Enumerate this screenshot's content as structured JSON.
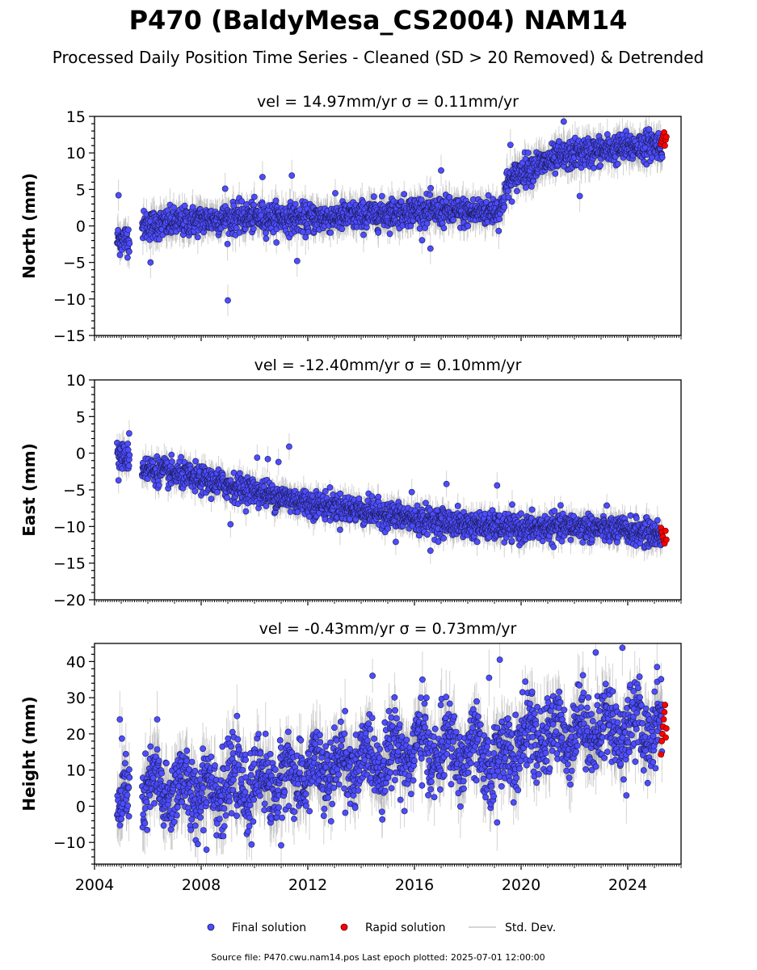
{
  "figure": {
    "title": "P470 (BaldyMesa_CS2004) NAM14",
    "subtitle": "Processed Daily Position Time Series - Cleaned (SD > 20 Removed) & Detrended",
    "footer": "Source file: P470.cwu.nam14.pos  Last epoch plotted: 2025-07-01 12:00:00"
  },
  "legend": {
    "final": "Final solution",
    "rapid": "Rapid solution",
    "std": "Std. Dev."
  },
  "colors": {
    "final_fill": "#4d4dff",
    "final_edge": "#1a1a55",
    "rapid_fill": "#ff0000",
    "rapid_edge": "#550000",
    "std_line": "#a8a8a8"
  },
  "chart_data": [
    {
      "type": "scatter",
      "panel_title": "vel = 14.97mm/yr   σ = 0.11mm/yr",
      "ylabel": "North (mm)",
      "xlim": [
        2004.0,
        2026.0
      ],
      "ylim": [
        -15,
        15
      ],
      "yticks": [
        -15,
        -10,
        -5,
        0,
        5,
        10,
        15
      ],
      "ytick_labels": [
        "−15",
        "−10",
        "−5",
        "0",
        "5",
        "10",
        "15"
      ],
      "xticks": [
        2004,
        2008,
        2012,
        2016,
        2020,
        2024
      ],
      "series": [
        {
          "role": "final",
          "trend_x": [
            2004.85,
            2005.5,
            2005.8,
            2008.0,
            2010.0,
            2012.0,
            2014.0,
            2016.0,
            2018.0,
            2019.25,
            2019.45,
            2020.0,
            2021.0,
            2022.0,
            2023.0,
            2025.3
          ],
          "trend_y": [
            -2.0,
            -1.5,
            0.0,
            0.8,
            1.2,
            1.0,
            1.4,
            2.1,
            1.8,
            2.2,
            5.5,
            7.5,
            8.8,
            9.8,
            10.3,
            11.3
          ],
          "noise": 1.0,
          "std": 1.8,
          "outliers": [
            [
              2004.9,
              4.2
            ],
            [
              2006.1,
              -5.0
            ],
            [
              2008.9,
              5.1
            ],
            [
              2009.0,
              -10.2
            ],
            [
              2010.3,
              6.7
            ],
            [
              2011.4,
              6.9
            ],
            [
              2011.6,
              -4.8
            ],
            [
              2017.0,
              7.6
            ],
            [
              2016.6,
              -3.1
            ],
            [
              2019.6,
              11.1
            ],
            [
              2022.2,
              4.1
            ],
            [
              2021.6,
              14.3
            ]
          ]
        },
        {
          "role": "rapid",
          "x_range": [
            2025.25,
            2025.45
          ],
          "values": [
            11.2,
            11.6,
            12.0,
            12.4,
            12.8,
            11.0,
            11.8,
            12.2
          ]
        }
      ]
    },
    {
      "type": "scatter",
      "panel_title": "vel = -12.40mm/yr   σ = 0.10mm/yr",
      "ylabel": "East (mm)",
      "xlim": [
        2004.0,
        2026.0
      ],
      "ylim": [
        -20,
        10
      ],
      "yticks": [
        -20,
        -15,
        -10,
        -5,
        0,
        5,
        10
      ],
      "ytick_labels": [
        "−20",
        "−15",
        "−10",
        "−5",
        "0",
        "5",
        "10"
      ],
      "xticks": [
        2004,
        2008,
        2012,
        2016,
        2020,
        2024
      ],
      "series": [
        {
          "role": "final",
          "trend_x": [
            2004.85,
            2005.5,
            2005.8,
            2008.0,
            2010.0,
            2012.0,
            2014.0,
            2016.0,
            2018.0,
            2020.0,
            2022.0,
            2024.0,
            2025.3
          ],
          "trend_y": [
            -0.3,
            -0.8,
            -2.0,
            -3.6,
            -5.2,
            -6.8,
            -7.8,
            -9.0,
            -9.8,
            -10.3,
            -10.0,
            -10.6,
            -11.2
          ],
          "noise": 0.9,
          "std": 1.5,
          "outliers": [
            [
              2004.9,
              -3.7
            ],
            [
              2005.3,
              2.7
            ],
            [
              2009.1,
              -9.7
            ],
            [
              2010.1,
              -0.6
            ],
            [
              2010.5,
              -0.8
            ],
            [
              2010.9,
              -1.2
            ],
            [
              2011.3,
              0.9
            ],
            [
              2015.9,
              -5.3
            ],
            [
              2015.3,
              -12.1
            ],
            [
              2017.2,
              -4.2
            ],
            [
              2019.1,
              -4.4
            ],
            [
              2016.6,
              -13.3
            ]
          ]
        },
        {
          "role": "rapid",
          "x_range": [
            2025.25,
            2025.45
          ],
          "values": [
            -10.2,
            -10.8,
            -11.4,
            -12.0,
            -12.3,
            -10.6,
            -11.8
          ]
        }
      ]
    },
    {
      "type": "scatter",
      "panel_title": "vel = -0.43mm/yr   σ = 0.73mm/yr",
      "ylabel": "Height (mm)",
      "xlim": [
        2004.0,
        2026.0
      ],
      "ylim": [
        -16,
        45
      ],
      "yticks": [
        -10,
        0,
        10,
        20,
        30,
        40
      ],
      "ytick_labels": [
        "−10",
        "0",
        "10",
        "20",
        "30",
        "40"
      ],
      "xticks": [
        2004,
        2008,
        2012,
        2016,
        2020,
        2024
      ],
      "xtick_labels": [
        "2004",
        "2008",
        "2012",
        "2016",
        "2020",
        "2024"
      ],
      "series": [
        {
          "role": "final",
          "trend_x": [
            2004.85,
            2006.0,
            2008.0,
            2010.0,
            2012.0,
            2014.0,
            2016.0,
            2018.0,
            2019.0,
            2020.0,
            2022.0,
            2024.0,
            2025.3
          ],
          "trend_y": [
            1.0,
            4.0,
            5.0,
            6.0,
            9.0,
            12.0,
            16.0,
            15.0,
            12.0,
            18.0,
            21.0,
            22.0,
            22.0
          ],
          "noise": 5.0,
          "std": 6.5,
          "seasonal_amp": 4.0,
          "outliers": [
            [
              2004.95,
              24.0
            ],
            [
              2006.35,
              24.0
            ],
            [
              2008.2,
              -12.0
            ],
            [
              2011.0,
              -10.8
            ],
            [
              2016.3,
              35.0
            ],
            [
              2018.8,
              35.5
            ],
            [
              2019.2,
              40.5
            ],
            [
              2019.1,
              -4.5
            ],
            [
              2022.8,
              42.5
            ],
            [
              2023.8,
              43.8
            ],
            [
              2023.95,
              3.0
            ],
            [
              2025.1,
              38.5
            ]
          ]
        },
        {
          "role": "rapid",
          "x_range": [
            2025.25,
            2025.45
          ],
          "values": [
            14.3,
            18.0,
            20.0,
            22.0,
            24.0,
            26.0,
            28.0,
            19.0,
            21.5
          ]
        }
      ]
    }
  ]
}
